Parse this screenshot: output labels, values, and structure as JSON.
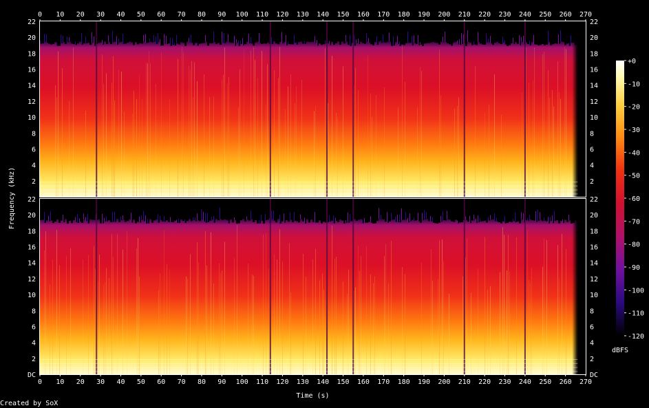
{
  "chart_data": {
    "type": "heatmap",
    "title": "",
    "xlabel": "Time (s)",
    "ylabel": "Frequency (kHz)",
    "xlim": [
      0,
      270
    ],
    "x_ticks": [
      0,
      10,
      20,
      30,
      40,
      50,
      60,
      70,
      80,
      90,
      100,
      110,
      120,
      130,
      140,
      150,
      160,
      170,
      180,
      190,
      200,
      210,
      220,
      230,
      240,
      250,
      260,
      270
    ],
    "ylim_khz": [
      0,
      22
    ],
    "y_ticks_top": [
      "22",
      "20",
      "18",
      "16",
      "14",
      "12",
      "10",
      "8",
      "6",
      "4",
      "2"
    ],
    "y_ticks_bottom": [
      "22",
      "20",
      "18",
      "16",
      "14",
      "12",
      "10",
      "8",
      "6",
      "4",
      "2",
      "DC"
    ],
    "y_tick_values": [
      22,
      20,
      18,
      16,
      14,
      12,
      10,
      8,
      6,
      4,
      2,
      0
    ],
    "channels": 2,
    "colorbar": {
      "label": "dBFS",
      "ticks": [
        "+0",
        "-10",
        "-20",
        "-30",
        "-40",
        "-50",
        "-60",
        "-70",
        "-80",
        "-90",
        "-100",
        "-110",
        "-120"
      ],
      "tick_values": [
        0,
        -10,
        -20,
        -30,
        -40,
        -50,
        -60,
        -70,
        -80,
        -90,
        -100,
        -110,
        -120
      ],
      "range": [
        -120,
        0
      ]
    },
    "signal": {
      "end_time_s": 266,
      "cutoff_khz": 19.5,
      "dips_s": [
        28,
        114,
        142,
        155,
        210,
        240
      ]
    }
  },
  "credit": "Created by SoX"
}
